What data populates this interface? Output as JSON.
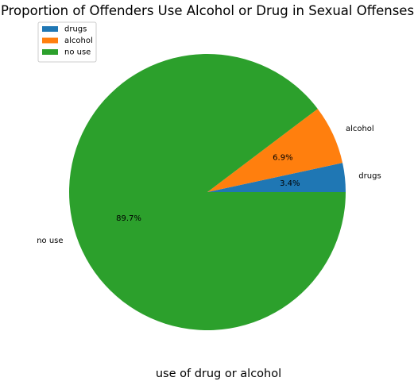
{
  "chart_data": {
    "type": "pie",
    "title": "Proportion of Offenders Use Alcohol or Drug in Sexual Offenses",
    "xlabel": "use of drug or alcohol",
    "ylabel": "",
    "categories": [
      "drugs",
      "alcohol",
      "no use"
    ],
    "values": [
      3.4,
      6.9,
      89.7
    ],
    "pct_labels": [
      "3.4%",
      "6.9%",
      "89.7%"
    ],
    "colors": [
      "#1f77b4",
      "#ff7f0e",
      "#2ca02c"
    ],
    "start_angle_deg": 0,
    "direction": "counterclockwise",
    "legend": {
      "placement": "top-left",
      "entries": [
        "drugs",
        "alcohol",
        "no use"
      ]
    }
  }
}
